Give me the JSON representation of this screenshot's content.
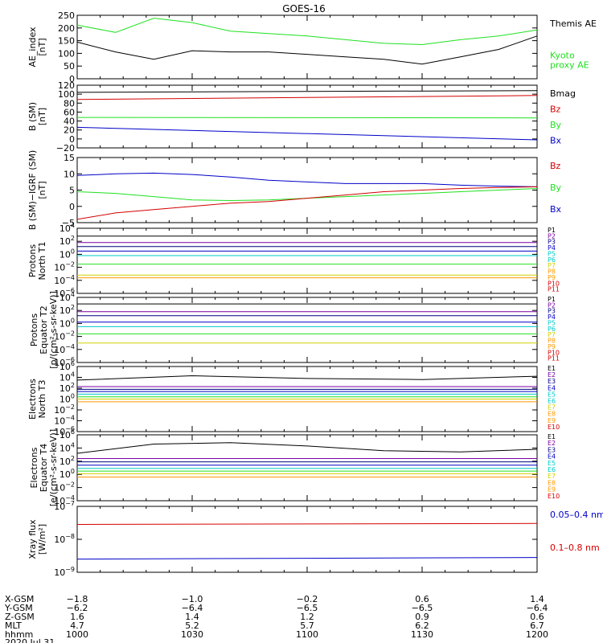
{
  "title": "GOES-16",
  "colors": {
    "black": "#000000",
    "red": "#d40000",
    "green": "#20e020",
    "blue": "#0000c8",
    "cyan": "#00c8c8",
    "yellow": "#d0d000",
    "orange": "#ff9900",
    "purple": "#7a00a0",
    "navy": "#000080"
  },
  "chart_data": [
    {
      "type": "line",
      "ylabel": "AE_index\n[nT]",
      "ylim": [
        0,
        260
      ],
      "ticks": [
        "0",
        "50",
        "100",
        "150",
        "200",
        "250"
      ],
      "x": [
        "1000",
        "1010",
        "1020",
        "1030",
        "1040",
        "1050",
        "1100",
        "1110",
        "1120",
        "1130",
        "1140",
        "1150",
        "1200"
      ],
      "series": [
        {
          "name": "Kyoto\nproxy AE",
          "color": "green",
          "values": [
            220,
            190,
            248,
            230,
            195,
            185,
            175,
            160,
            145,
            140,
            160,
            175,
            200
          ]
        },
        {
          "name": "Themis AE",
          "color": "black",
          "values": [
            150,
            110,
            80,
            115,
            110,
            110,
            100,
            90,
            80,
            60,
            90,
            120,
            175
          ]
        }
      ]
    },
    {
      "type": "line",
      "ylabel": "B (SM)\n[nT]",
      "ylim": [
        -20,
        120
      ],
      "ticks": [
        "−20",
        "0",
        "20",
        "40",
        "60",
        "80",
        "100",
        "120"
      ],
      "x": [
        "1000",
        "1200"
      ],
      "series": [
        {
          "name": "Bx",
          "color": "blue",
          "values": [
            26,
            -2
          ]
        },
        {
          "name": "By",
          "color": "green",
          "values": [
            48,
            47
          ]
        },
        {
          "name": "Bz",
          "color": "red",
          "values": [
            88,
            97
          ]
        },
        {
          "name": "Bmag",
          "color": "black",
          "values": [
            104,
            108
          ]
        }
      ]
    },
    {
      "type": "line",
      "ylabel": "B (SM)−IGRF (SM)\n[nT]",
      "ylim": [
        -5,
        15
      ],
      "ticks": [
        "−5",
        "0",
        "5",
        "10",
        "15"
      ],
      "x": [
        "1000",
        "1010",
        "1020",
        "1030",
        "1040",
        "1050",
        "1100",
        "1110",
        "1120",
        "1130",
        "1140",
        "1150",
        "1200"
      ],
      "series": [
        {
          "name": "Bx",
          "color": "blue",
          "values": [
            9.5,
            10,
            10.2,
            9.8,
            9,
            8,
            7.5,
            7,
            7,
            7,
            6.5,
            6.2,
            6
          ]
        },
        {
          "name": "By",
          "color": "green",
          "values": [
            4.5,
            4,
            3,
            2,
            1.8,
            2,
            2.5,
            3,
            3.5,
            4,
            4.5,
            5,
            5.5
          ]
        },
        {
          "name": "Bz",
          "color": "red",
          "values": [
            -4,
            -2,
            -1,
            0,
            1,
            1.5,
            2.5,
            3.5,
            4.5,
            5,
            5.5,
            5.8,
            6
          ]
        }
      ]
    },
    {
      "type": "line",
      "ylabel": "Protons\nNorth T1",
      "ylim": [
        -6,
        4
      ],
      "ticks": [
        "10^-6",
        "10^-4",
        "10^-2",
        "10^0",
        "10^2",
        "10^4"
      ],
      "legend": [
        "P1",
        "P2",
        "P3",
        "P4",
        "P5",
        "P6",
        "P7",
        "P8",
        "P9",
        "P10",
        "P11"
      ],
      "series": [
        {
          "name": "P1",
          "color": "black",
          "values": [
            2.8,
            2.8
          ]
        },
        {
          "name": "P2",
          "color": "purple",
          "values": [
            1.8,
            1.8
          ]
        },
        {
          "name": "P3",
          "color": "navy",
          "values": [
            1.2,
            1.2
          ]
        },
        {
          "name": "P4",
          "color": "blue",
          "values": [
            0.5,
            0.5
          ]
        },
        {
          "name": "P5",
          "color": "cyan",
          "values": [
            -0.2,
            -0.2
          ]
        },
        {
          "name": "P6",
          "color": "green",
          "values": [
            -1.5,
            -1.5
          ]
        },
        {
          "name": "P7",
          "color": "yellow",
          "values": [
            -3.2,
            -3.2
          ]
        },
        {
          "name": "P8",
          "color": "orange",
          "values": [
            -3.6,
            -3.6
          ]
        }
      ]
    },
    {
      "type": "line",
      "ylabel": "Protons\nEquator T2\n[p/(cm²-s-sr-keV)]",
      "ylim": [
        -6,
        4
      ],
      "ticks": [
        "10^-6",
        "10^-4",
        "10^-2",
        "10^0",
        "10^2",
        "10^4"
      ],
      "legend": [
        "P1",
        "P2",
        "P3",
        "P4",
        "P5",
        "P6",
        "P7",
        "P8",
        "P9",
        "P10",
        "P11"
      ],
      "series": [
        {
          "name": "P1",
          "color": "black",
          "values": [
            3.0,
            3.0
          ]
        },
        {
          "name": "P2",
          "color": "purple",
          "values": [
            1.8,
            1.8
          ]
        },
        {
          "name": "P3",
          "color": "navy",
          "values": [
            1.2,
            1.2
          ]
        },
        {
          "name": "P4",
          "color": "blue",
          "values": [
            0.2,
            0.2
          ]
        },
        {
          "name": "P5",
          "color": "cyan",
          "values": [
            -0.5,
            -0.5
          ]
        },
        {
          "name": "P6",
          "color": "green",
          "values": [
            -1.6,
            -1.6
          ]
        },
        {
          "name": "P7",
          "color": "yellow",
          "values": [
            -3.0,
            -3.0
          ]
        }
      ]
    },
    {
      "type": "line",
      "ylabel": "Electrons\nNorth T3",
      "ylim": [
        -6,
        6
      ],
      "ticks": [
        "10^-6",
        "10^-4",
        "10^-2",
        "10^0",
        "10^2",
        "10^4",
        "10^6"
      ],
      "legend": [
        "E1",
        "E2",
        "E3",
        "E4",
        "E5",
        "E6",
        "E7",
        "E8",
        "E9",
        "E10"
      ],
      "series": [
        {
          "name": "E1",
          "color": "black",
          "values": [
            3.5,
            4.3,
            3.8,
            3.6,
            4.2
          ]
        },
        {
          "name": "E2",
          "color": "purple",
          "values": [
            2.3,
            2.3
          ]
        },
        {
          "name": "E3",
          "color": "navy",
          "values": [
            1.8,
            1.8
          ]
        },
        {
          "name": "E4",
          "color": "blue",
          "values": [
            1.4,
            1.4
          ]
        },
        {
          "name": "E5",
          "color": "cyan",
          "values": [
            0.9,
            0.9
          ]
        },
        {
          "name": "E6",
          "color": "green",
          "values": [
            0.4,
            0.4
          ]
        },
        {
          "name": "E7",
          "color": "yellow",
          "values": [
            0,
            0
          ]
        },
        {
          "name": "E8",
          "color": "orange",
          "values": [
            -0.5,
            -0.5
          ]
        }
      ]
    },
    {
      "type": "line",
      "ylabel": "Electrons\nEquator T4\n[e/(cm²-s-sr-keV)]",
      "ylim": [
        -4,
        6
      ],
      "ticks": [
        "10^-4",
        "10^-2",
        "10^0",
        "10^2",
        "10^4",
        "10^6"
      ],
      "legend": [
        "E1",
        "E2",
        "E3",
        "E4",
        "E5",
        "E6",
        "E7",
        "E8",
        "E9",
        "E10"
      ],
      "series": [
        {
          "name": "E1",
          "color": "black",
          "values": [
            3.2,
            4.6,
            4.8,
            4.3,
            3.6,
            3.4,
            3.8
          ]
        },
        {
          "name": "E2",
          "color": "purple",
          "values": [
            2.4,
            2.4
          ]
        },
        {
          "name": "E3",
          "color": "navy",
          "values": [
            1.9,
            1.9
          ]
        },
        {
          "name": "E4",
          "color": "blue",
          "values": [
            1.4,
            1.4
          ]
        },
        {
          "name": "E5",
          "color": "cyan",
          "values": [
            0.9,
            0.9
          ]
        },
        {
          "name": "E6",
          "color": "green",
          "values": [
            0.5,
            0.5
          ]
        },
        {
          "name": "E7",
          "color": "yellow",
          "values": [
            0.1,
            0.1
          ]
        },
        {
          "name": "E8",
          "color": "orange",
          "values": [
            -0.4,
            -0.4
          ]
        }
      ]
    },
    {
      "type": "line",
      "ylabel": "Xray flux\n[W/m²]",
      "ylim": [
        -9,
        -7
      ],
      "ticks": [
        "10^-9",
        "10^-8",
        "10^-7"
      ],
      "series": [
        {
          "name": "0.1–0.8 nm",
          "color": "red",
          "values": [
            -7.55,
            -7.52
          ]
        },
        {
          "name": "0.05–0.4 nm",
          "color": "blue",
          "values": [
            -8.6,
            -8.55
          ]
        }
      ]
    }
  ],
  "x_axis": {
    "row_labels": [
      "X-GSM",
      "Y-GSM",
      "Z-GSM",
      "MLT",
      "hhmm",
      "2020 Jul 31"
    ],
    "columns": [
      [
        "−1.8",
        "−6.2",
        "1.6",
        "4.7",
        "1000"
      ],
      [
        "−1.0",
        "−6.4",
        "1.4",
        "5.2",
        "1030"
      ],
      [
        "−0.2",
        "−6.5",
        "1.2",
        "5.7",
        "1100"
      ],
      [
        "0.6",
        "−6.5",
        "0.9",
        "6.2",
        "1130"
      ],
      [
        "1.4",
        "−6.4",
        "0.6",
        "6.7",
        "1200"
      ]
    ]
  }
}
